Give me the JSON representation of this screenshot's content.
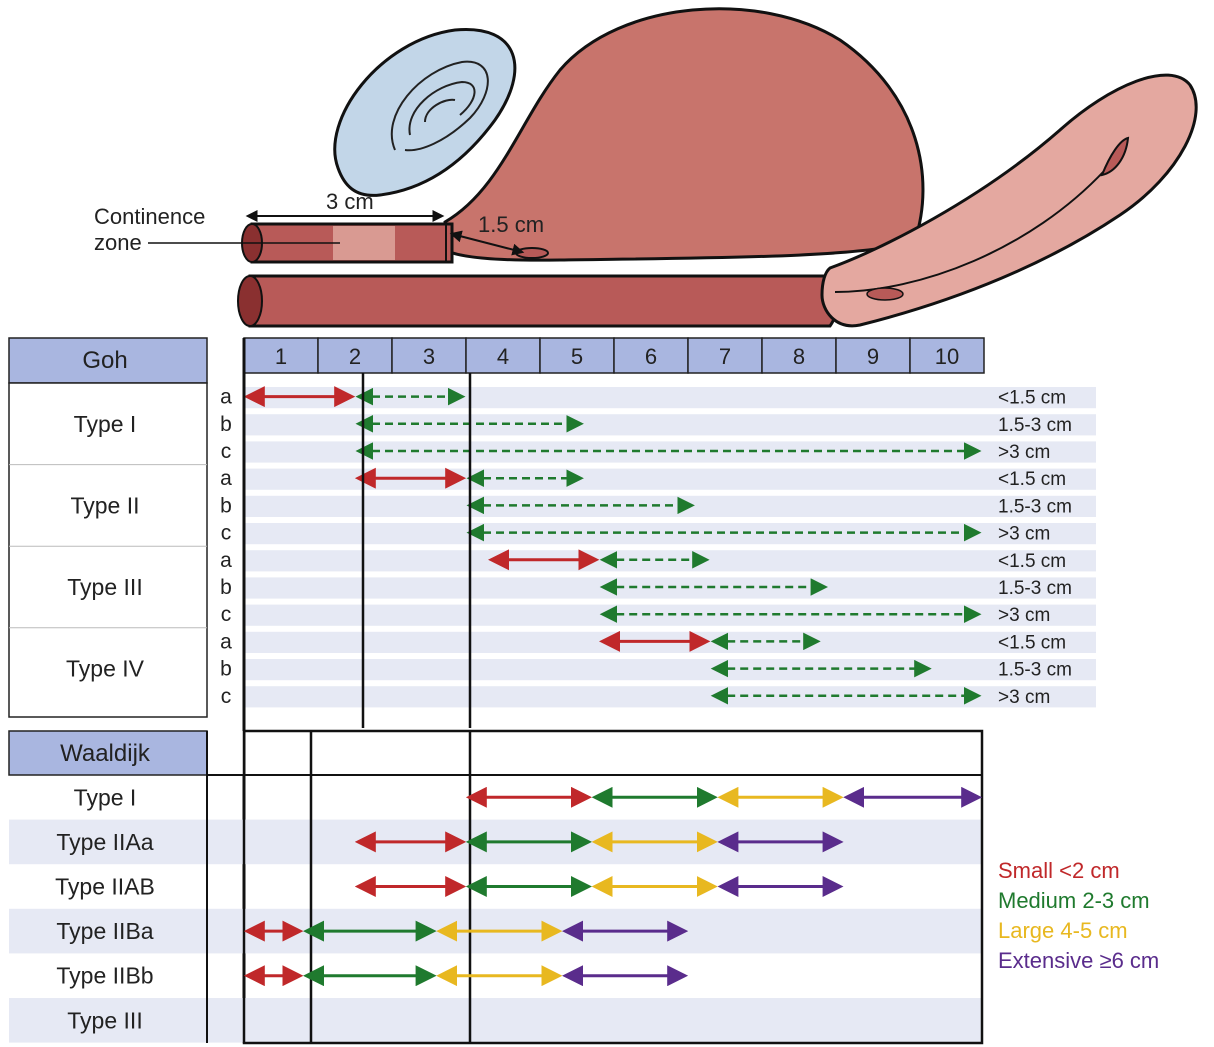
{
  "anatomy": {
    "continence_label_line1": "Continence",
    "continence_label_line2": "zone",
    "measure_3cm": "3 cm",
    "measure_1_5cm": "1.5 cm"
  },
  "goh": {
    "header": "Goh",
    "columns": [
      "1",
      "2",
      "3",
      "4",
      "5",
      "6",
      "7",
      "8",
      "9",
      "10"
    ],
    "types": [
      {
        "label": "Type I",
        "rows": [
          {
            "sub": "a",
            "size": "<1.5 cm",
            "solid": [
              1,
              2.5
            ],
            "dashed": [
              2.5,
              4
            ]
          },
          {
            "sub": "b",
            "size": "1.5-3 cm",
            "solid": null,
            "dashed": [
              2.5,
              5.6
            ]
          },
          {
            "sub": "c",
            "size": ">3 cm",
            "solid": null,
            "dashed": [
              2.5,
              11
            ]
          }
        ]
      },
      {
        "label": "Type II",
        "rows": [
          {
            "sub": "a",
            "size": "<1.5 cm",
            "solid": [
              2.5,
              4
            ],
            "dashed": [
              4,
              5.6
            ]
          },
          {
            "sub": "b",
            "size": "1.5-3 cm",
            "solid": null,
            "dashed": [
              4,
              7.1
            ]
          },
          {
            "sub": "c",
            "size": ">3 cm",
            "solid": null,
            "dashed": [
              4,
              11
            ]
          }
        ]
      },
      {
        "label": "Type III",
        "rows": [
          {
            "sub": "a",
            "size": "<1.5 cm",
            "solid": [
              4.3,
              5.8
            ],
            "dashed": [
              5.8,
              7.3
            ]
          },
          {
            "sub": "b",
            "size": "1.5-3 cm",
            "solid": null,
            "dashed": [
              5.8,
              8.9
            ]
          },
          {
            "sub": "c",
            "size": ">3 cm",
            "solid": null,
            "dashed": [
              5.8,
              11
            ]
          }
        ]
      },
      {
        "label": "Type IV",
        "rows": [
          {
            "sub": "a",
            "size": "<1.5 cm",
            "solid": [
              5.8,
              7.3
            ],
            "dashed": [
              7.3,
              8.8
            ]
          },
          {
            "sub": "b",
            "size": "1.5-3 cm",
            "solid": null,
            "dashed": [
              7.3,
              10.3
            ]
          },
          {
            "sub": "c",
            "size": ">3 cm",
            "solid": null,
            "dashed": [
              7.3,
              11
            ]
          }
        ]
      }
    ]
  },
  "waaldijk": {
    "header": "Waaldijk",
    "types": [
      {
        "label": "Type I",
        "arrows": [
          [
            4,
            5.7
          ],
          [
            5.7,
            7.4
          ],
          [
            7.4,
            9.1
          ],
          [
            9.1,
            11
          ]
        ]
      },
      {
        "label": "Type IIAa",
        "arrows": [
          [
            2.5,
            4
          ],
          [
            4,
            5.7
          ],
          [
            5.7,
            7.4
          ],
          [
            7.4,
            9.1
          ]
        ]
      },
      {
        "label": "Type IIAB",
        "arrows": [
          [
            2.5,
            4
          ],
          [
            4,
            5.7
          ],
          [
            5.7,
            7.4
          ],
          [
            7.4,
            9.1
          ]
        ]
      },
      {
        "label": "Type IIBa",
        "arrows": [
          [
            1,
            1.8
          ],
          [
            1.8,
            3.6
          ],
          [
            3.6,
            5.3
          ],
          [
            5.3,
            7
          ]
        ]
      },
      {
        "label": "Type IIBb",
        "arrows": [
          [
            1,
            1.8
          ],
          [
            1.8,
            3.6
          ],
          [
            3.6,
            5.3
          ],
          [
            5.3,
            7
          ]
        ]
      },
      {
        "label": "Type III",
        "arrows": []
      }
    ]
  },
  "legend": [
    {
      "label": "Small <2 cm",
      "color": "#c0282a"
    },
    {
      "label": "Medium 2-3 cm",
      "color": "#1f7a2e"
    },
    {
      "label": "Large 4-5 cm",
      "color": "#e8b820"
    },
    {
      "label": "Extensive ≥6 cm",
      "color": "#5a2c8c"
    }
  ],
  "colors": {
    "header_fill": "#a9b6e0",
    "stripe_fill": "#e6e9f4",
    "red": "#c0282a",
    "green": "#1f7a2e",
    "yellow": "#e8b820",
    "purple": "#5a2c8c",
    "tissue": "#b85a58",
    "tissue_dark": "#8a3030",
    "bladder": "#c8746c",
    "uterus": "#e4a8a0",
    "bone": "#c2d6e8"
  }
}
